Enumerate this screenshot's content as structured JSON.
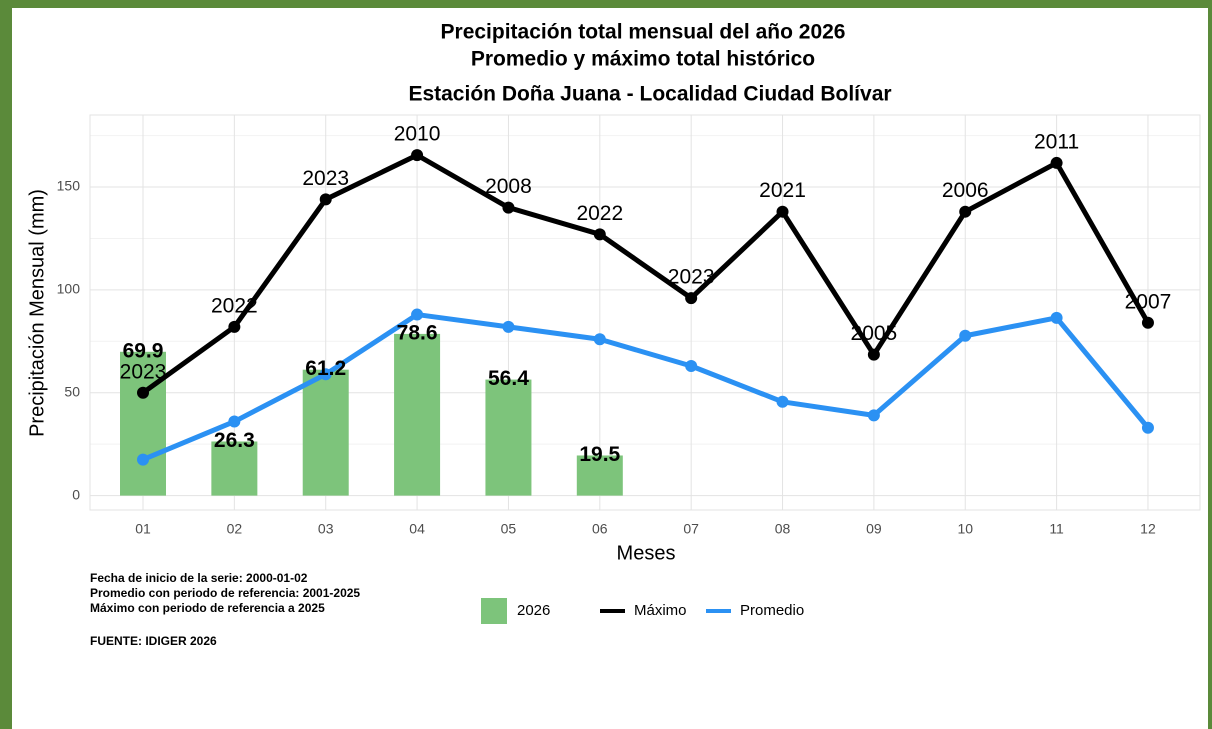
{
  "chart_data": {
    "type": "bar",
    "title": [
      "Precipitación total mensual del año 2026",
      "Promedio y máximo total histórico",
      "Estación Doña Juana - Localidad Ciudad Bolívar"
    ],
    "x_label": "Meses",
    "y_label": "Precipitación Mensual (mm)",
    "categories": [
      "01",
      "02",
      "03",
      "04",
      "05",
      "06",
      "07",
      "08",
      "09",
      "10",
      "11",
      "12"
    ],
    "series": [
      {
        "name": "2026",
        "type": "bar",
        "color": "#7dc47b",
        "values": [
          69.9,
          26.3,
          61.2,
          78.6,
          56.4,
          19.5,
          null,
          null,
          null,
          null,
          null,
          null
        ]
      },
      {
        "name": "Máximo",
        "type": "line",
        "color": "#000000",
        "values": [
          50,
          82,
          144,
          165.5,
          140,
          127,
          96,
          138,
          68.5,
          138,
          161.7,
          84
        ],
        "point_labels": [
          "2023",
          "2022",
          "2023",
          "2010",
          "2008",
          "2022",
          "2023",
          "2021",
          "2005",
          "2006",
          "2011",
          "2007"
        ]
      },
      {
        "name": "Promedio",
        "type": "line",
        "color": "#2b91f3",
        "values": [
          17.5,
          36,
          59,
          88,
          82,
          76,
          63,
          45.6,
          39,
          77.7,
          86.4,
          33
        ]
      }
    ],
    "ylim": [
      -7,
      185
    ],
    "yticks": [
      0,
      50,
      100,
      150
    ],
    "yticks_minor": [
      25,
      75,
      125,
      175
    ],
    "grid": true,
    "notes": [
      "Fecha de inicio de la serie: 2000-01-02",
      "Promedio con periodo de referencia: 2001-2025",
      "Máximo con periodo de referencia a 2025"
    ],
    "source": "FUENTE: IDIGER 2026"
  }
}
